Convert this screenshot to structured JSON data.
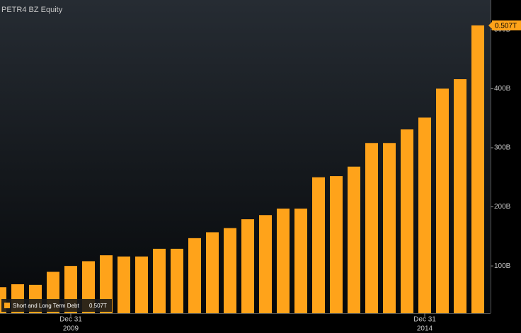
{
  "chart_data": {
    "type": "bar",
    "title": "PETR4 BZ Equity",
    "categories": [
      null,
      null,
      null,
      null,
      "Dec 31",
      null,
      null,
      null,
      null,
      null,
      null,
      null,
      null,
      null,
      null,
      null,
      null,
      null,
      null,
      null,
      null,
      null,
      null,
      null,
      "Dec 31",
      null,
      null,
      null
    ],
    "category_years": [
      null,
      null,
      null,
      null,
      "2009",
      null,
      null,
      null,
      null,
      null,
      null,
      null,
      null,
      null,
      null,
      null,
      null,
      null,
      null,
      null,
      null,
      null,
      null,
      null,
      "2014",
      null,
      null,
      null
    ],
    "series": [
      {
        "name": "Short and Long Term Debt",
        "color": "#ffa31a",
        "values": [
          64,
          69,
          68,
          90,
          100,
          108,
          118,
          116,
          116,
          129,
          129,
          147,
          157,
          164,
          179,
          186,
          197,
          197,
          250,
          252,
          268,
          308,
          308,
          331,
          351,
          400,
          416,
          507
        ],
        "value_labels": [
          null,
          null,
          null,
          null,
          null,
          null,
          null,
          null,
          null,
          null,
          null,
          null,
          null,
          null,
          null,
          null,
          null,
          null,
          null,
          null,
          null,
          null,
          null,
          null,
          null,
          null,
          null,
          "0.507T"
        ]
      }
    ],
    "ylim": [
      20,
      550
    ],
    "yticks": [
      {
        "value": 100,
        "label": "100B"
      },
      {
        "value": 200,
        "label": "200B"
      },
      {
        "value": 300,
        "label": "300B"
      },
      {
        "value": 400,
        "label": "400B"
      },
      {
        "value": 500,
        "label": "500B"
      }
    ],
    "grid": false
  }
}
